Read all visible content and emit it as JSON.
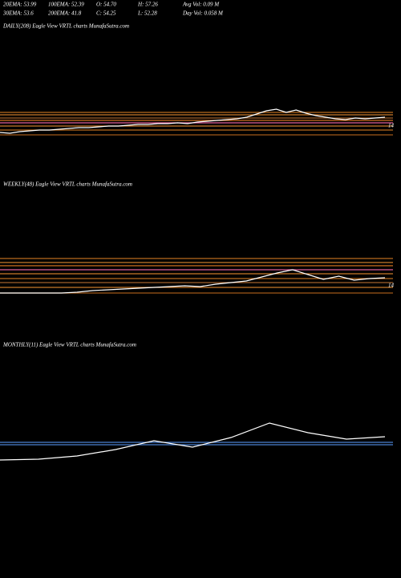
{
  "header": {
    "stats": [
      [
        "20EMA: 53.99",
        "100EMA: 52.39",
        "O: 54.70",
        "H: 57.26",
        "Avg Vol: 0.09 M"
      ],
      [
        "30EMA: 53.6",
        "200EMA: 41.8",
        "C: 54.25",
        "L: 52.28",
        "Day Vol: 0.058 M"
      ]
    ]
  },
  "chart_data": [
    {
      "type": "line",
      "title": "DAILY(208) Eagle  View  VRTL  charts MunafaSutra.com",
      "ylim": [
        0,
        100
      ],
      "levels": [
        {
          "value": 50,
          "color": "#b86a1c"
        },
        {
          "value": 47,
          "color": "#c87a2a"
        },
        {
          "value": 43,
          "color": "#a0602a"
        },
        {
          "value": 40,
          "color": "#d07020"
        },
        {
          "value": 37,
          "color": "#e0609a"
        },
        {
          "value": 33,
          "color": "#c87a2a"
        },
        {
          "value": 28,
          "color": "#b86a1c"
        },
        {
          "value": 22,
          "color": "#a05818"
        }
      ],
      "level_label": {
        "value": 33,
        "label": "14"
      },
      "series": [
        {
          "color": "#ffffff",
          "values": [
            25,
            24,
            26,
            27,
            28,
            28,
            29,
            30,
            31,
            31,
            32,
            33,
            33,
            34,
            35,
            35,
            36,
            36,
            37,
            36,
            38,
            39,
            40,
            41,
            42,
            44,
            48,
            52,
            54,
            50,
            53,
            49,
            46,
            44,
            42,
            41,
            43,
            42,
            43,
            44
          ]
        }
      ]
    },
    {
      "type": "line",
      "title": "WEEKLY(48) Eagle  View  VRTL  charts MunafaSutra.com",
      "ylim": [
        0,
        100
      ],
      "levels": [
        {
          "value": 68,
          "color": "#b86a1c"
        },
        {
          "value": 63,
          "color": "#c87a2a"
        },
        {
          "value": 59,
          "color": "#d07020"
        },
        {
          "value": 54,
          "color": "#e0609a"
        },
        {
          "value": 49,
          "color": "#c87a2a"
        },
        {
          "value": 43,
          "color": "#b86a1c"
        },
        {
          "value": 38,
          "color": "#a0602a"
        },
        {
          "value": 32,
          "color": "#c87a2a"
        },
        {
          "value": 25,
          "color": "#a05818"
        }
      ],
      "level_label": {
        "value": 34,
        "label": "14"
      },
      "series": [
        {
          "color": "#ffffff",
          "values": [
            25,
            25,
            25,
            25,
            25,
            26,
            28,
            29,
            30,
            31,
            32,
            33,
            34,
            33,
            36,
            38,
            40,
            45,
            50,
            54,
            48,
            42,
            46,
            41,
            43,
            44
          ]
        }
      ]
    },
    {
      "type": "line",
      "title": "MONTHLY(11) Eagle  View  VRTL  charts MunafaSutra.com",
      "ylim": [
        0,
        150
      ],
      "levels": [
        {
          "value": 69,
          "color": "#4a7fd0"
        },
        {
          "value": 66,
          "color": "#4a7fd0"
        }
      ],
      "series": [
        {
          "color": "#ffffff",
          "values": [
            47,
            48,
            52,
            60,
            71,
            63,
            75,
            93,
            81,
            73,
            76
          ]
        }
      ]
    }
  ]
}
